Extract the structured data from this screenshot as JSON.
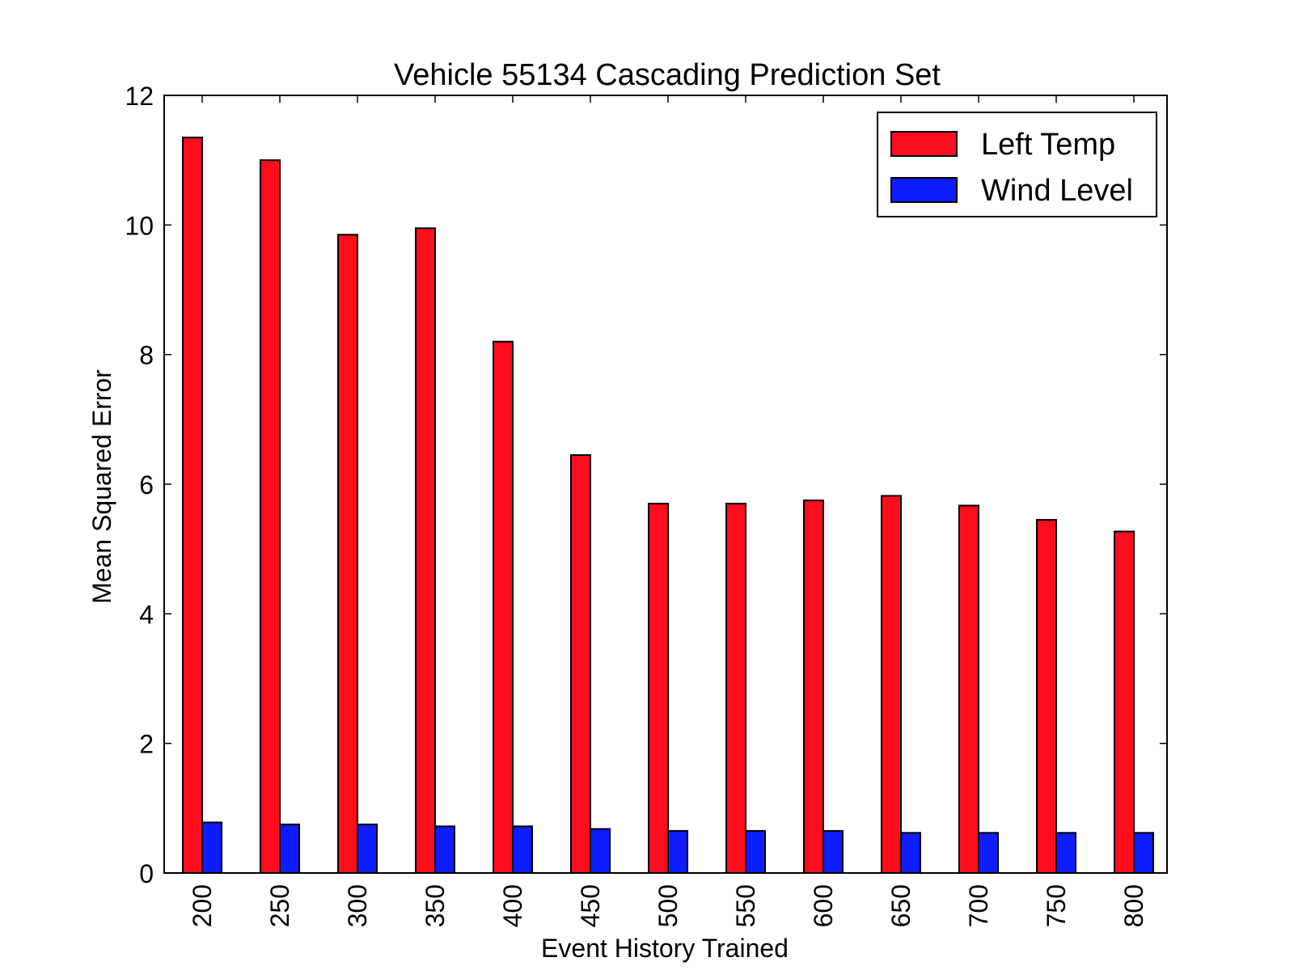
{
  "chart_data": {
    "type": "bar",
    "title": "Vehicle 55134 Cascading Prediction Set",
    "xlabel": "Event History Trained",
    "ylabel": "Mean Squared Error",
    "ylim": [
      0,
      12
    ],
    "yticks": [
      0,
      2,
      4,
      6,
      8,
      10,
      12
    ],
    "categories": [
      "200",
      "250",
      "300",
      "350",
      "400",
      "450",
      "500",
      "550",
      "600",
      "650",
      "700",
      "750",
      "800"
    ],
    "series": [
      {
        "name": "Left Temp",
        "color": "#ff0d1d",
        "values": [
          11.35,
          11.0,
          9.85,
          9.95,
          8.2,
          6.45,
          5.7,
          5.7,
          5.75,
          5.82,
          5.67,
          5.45,
          5.27
        ]
      },
      {
        "name": "Wind Level",
        "color": "#0d1dff",
        "values": [
          0.78,
          0.75,
          0.75,
          0.72,
          0.72,
          0.68,
          0.65,
          0.65,
          0.65,
          0.62,
          0.62,
          0.62,
          0.62
        ]
      }
    ],
    "legend_position": "top-right",
    "grid": false
  }
}
